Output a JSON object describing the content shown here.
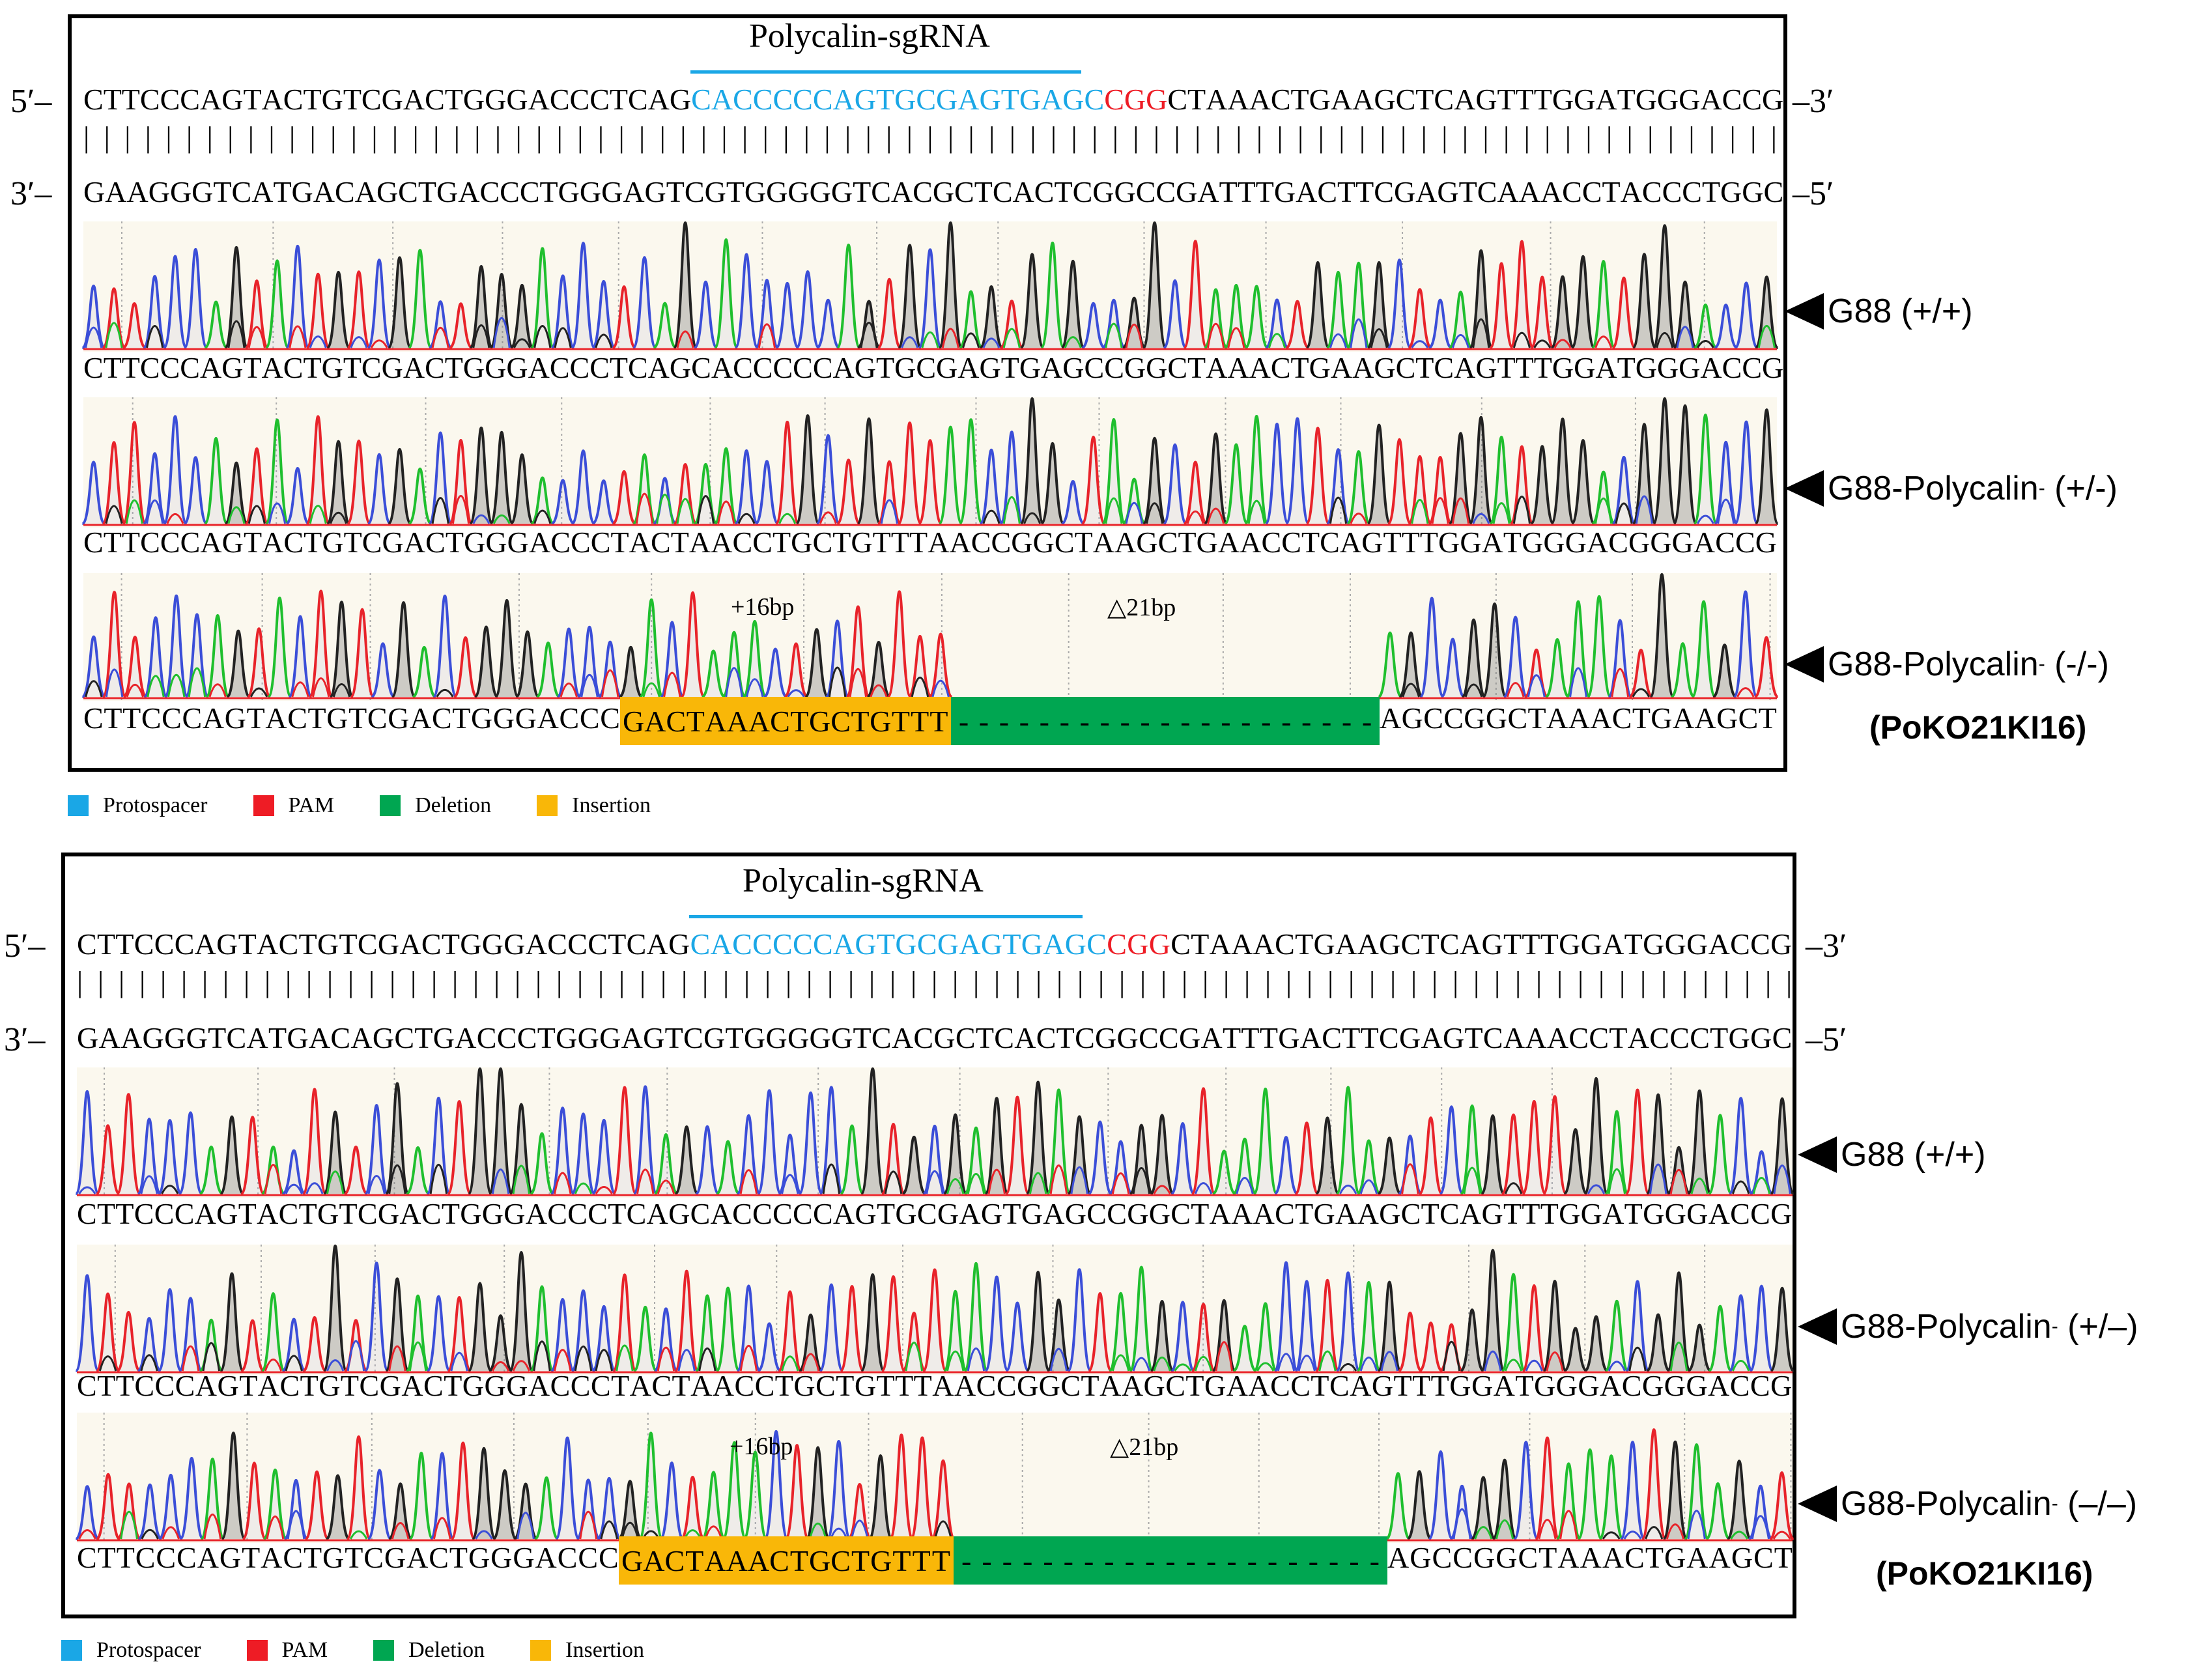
{
  "colors": {
    "protospacer": "#1aa7e6",
    "pam": "#ee1c25",
    "deletion": "#00a651",
    "insertion": "#f9b708",
    "trace_a": "#1fbf2e",
    "trace_c": "#3b4ed8",
    "trace_g": "#222222",
    "trace_t": "#e8232a"
  },
  "panels": [
    {
      "sgrna_title": "Polycalin-sgRNA",
      "five_prime_left": "5′–",
      "three_prime_left": "3′–",
      "three_prime_right": "–3′",
      "five_prime_right": "–5′",
      "ref_top": {
        "pre": "CTTCCCAGTACTGTCGACTGGGACCCTCAG",
        "protospacer": "CACCCCCAGTGCGAGTGAGC",
        "pam": "CGG",
        "post": "CTAAACTGAAGCTCAGTTTGGATGGGACCG"
      },
      "ref_bottom": "GAAGGGTCATGACAGCTGACCCTGGGAGTCGTGGGGGTCACGCTCACTCGGCCGATTTGACTTCGAGTCAAACCTACCCTGGC",
      "tracks": [
        {
          "label": "G88 (+/+)",
          "sequence": "CTTCCCAGTACTGTCGACTGGGACCCTCAGCACCCCCAGTGCGAGTGAGCCGGCTAAACTGAAGCTCAGTTTGGATGGGACCG"
        },
        {
          "label_main": "G88-Polycalin",
          "label_sup": "-",
          "label_tail": " (+/-)",
          "sequence": "CTTCCCAGTACTGTCGACTGGGACCCTACTAACCTGCTGTTTAACCGGCTAAGCTGAACCTCAGTTTGGATGGGACGGGACCG"
        },
        {
          "label_main": "G88-Polycalin",
          "label_sup": "-",
          "label_tail": " (-/-)",
          "clone": "(PoKO21KI16)",
          "seq_pre": "CTTCCCAGTACTGTCGACTGGGACCC",
          "insertion_seq": "GACTAAACTGCTGTTT",
          "deletion_seq": "---------------------",
          "seq_post": "AGCCGGCTAAACTGAAGCT",
          "insertion_label": "+16bp",
          "deletion_label": "△21bp"
        }
      ],
      "legend": [
        "Protospacer",
        "PAM",
        "Deletion",
        "Insertion"
      ]
    },
    {
      "sgrna_title": "Polycalin-sgRNA",
      "five_prime_left": "5′–",
      "three_prime_left": "3′–",
      "three_prime_right": "–3′",
      "five_prime_right": "–5′",
      "ref_top": {
        "pre": "CTTCCCAGTACTGTCGACTGGGACCCTCAG",
        "protospacer": "CACCCCCAGTGCGAGTGAGC",
        "pam": "CGG",
        "post": "CTAAACTGAAGCTCAGTTTGGATGGGACCG"
      },
      "ref_bottom": "GAAGGGTCATGACAGCTGACCCTGGGAGTCGTGGGGGTCACGCTCACTCGGCCGATTTGACTTCGAGTCAAACCTACCCTGGC",
      "tracks": [
        {
          "label": "G88 (+/+)",
          "sequence": "CTTCCCAGTACTGTCGACTGGGACCCTCAGCACCCCCAGTGCGAGTGAGCCGGCTAAACTGAAGCTCAGTTTGGATGGGACCG"
        },
        {
          "label_main": "G88-Polycalin",
          "label_sup": "-",
          "label_tail": " (+/–)",
          "sequence": "CTTCCCAGTACTGTCGACTGGGACCCTACTAACCTGCTGTTTAACCGGCTAAGCTGAACCTCAGTTTGGATGGGACGGGACCG"
        },
        {
          "label_main": "G88-Polycalin",
          "label_sup": "-",
          "label_tail": " (–/–)",
          "clone": "(PoKO21KI16)",
          "seq_pre": "CTTCCCAGTACTGTCGACTGGGACCC",
          "insertion_seq": "GACTAAACTGCTGTTT",
          "deletion_seq": "---------------------",
          "seq_post": "AGCCGGCTAAACTGAAGCT",
          "insertion_label": "+16bp",
          "deletion_label": "△21bp"
        }
      ],
      "legend": [
        "Protospacer",
        "PAM",
        "Deletion",
        "Insertion"
      ]
    }
  ]
}
